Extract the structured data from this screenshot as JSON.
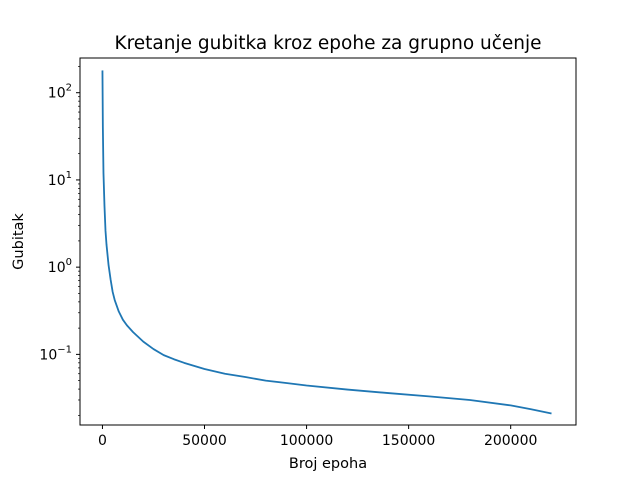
{
  "chart_data": {
    "type": "line",
    "title": "Kretanje gubitka kroz epohe za grupno učenje",
    "xlabel": "Broj epoha",
    "ylabel": "Gubitak",
    "xscale": "linear",
    "yscale": "log",
    "xlim": [
      -11000,
      232000
    ],
    "ylim": [
      0.0155,
      250
    ],
    "xticks": [
      0,
      50000,
      100000,
      150000,
      200000
    ],
    "xtick_labels": [
      "0",
      "50000",
      "100000",
      "150000",
      "200000"
    ],
    "yticks": [
      0.1,
      1,
      10,
      100
    ],
    "ytick_labels": [
      {
        "base": "10",
        "exp": "−1"
      },
      {
        "base": "10",
        "exp": "0"
      },
      {
        "base": "10",
        "exp": "1"
      },
      {
        "base": "10",
        "exp": "2"
      }
    ],
    "grid": false,
    "legend": "none",
    "series": [
      {
        "color": "#1f77b4",
        "x": [
          0,
          200,
          500,
          1000,
          1500,
          2000,
          3000,
          4000,
          5000,
          6000,
          8000,
          10000,
          12000,
          15000,
          20000,
          25000,
          30000,
          35000,
          40000,
          50000,
          60000,
          70000,
          80000,
          90000,
          100000,
          120000,
          140000,
          160000,
          180000,
          200000,
          210000,
          220000
        ],
        "y": [
          180,
          40,
          12,
          5,
          2.6,
          1.8,
          1.05,
          0.72,
          0.52,
          0.42,
          0.31,
          0.25,
          0.215,
          0.18,
          0.14,
          0.115,
          0.098,
          0.088,
          0.08,
          0.068,
          0.06,
          0.055,
          0.05,
          0.047,
          0.044,
          0.0395,
          0.036,
          0.033,
          0.03,
          0.026,
          0.0235,
          0.021
        ]
      }
    ]
  }
}
